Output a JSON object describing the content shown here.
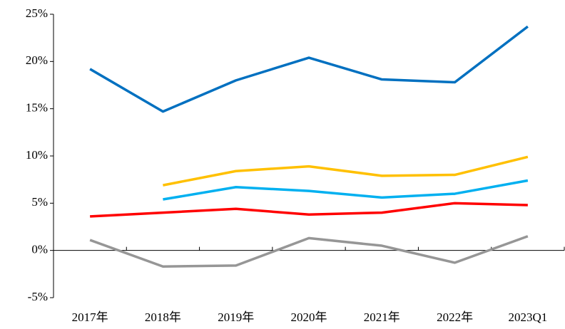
{
  "chart_data": {
    "type": "line",
    "categories": [
      "2017年",
      "2018年",
      "2019年",
      "2020年",
      "2021年",
      "2022年",
      "2023Q1"
    ],
    "series": [
      {
        "color": "#0070c0",
        "values": [
          19.2,
          14.7,
          18.0,
          20.4,
          18.1,
          17.8,
          23.7
        ]
      },
      {
        "color": "#ffc000",
        "values": [
          null,
          6.9,
          8.4,
          8.9,
          7.9,
          8.0,
          9.9
        ]
      },
      {
        "color": "#00b0f0",
        "values": [
          null,
          5.4,
          6.7,
          6.3,
          5.6,
          6.0,
          7.4
        ]
      },
      {
        "color": "#ff0000",
        "values": [
          3.6,
          4.0,
          4.4,
          3.8,
          4.0,
          5.0,
          4.8
        ]
      },
      {
        "color": "#969696",
        "values": [
          1.1,
          -1.7,
          -1.6,
          1.3,
          0.5,
          -1.3,
          1.5
        ]
      }
    ],
    "ylim": [
      -5,
      25
    ],
    "yticks": [
      {
        "value": -5,
        "label": "-5%"
      },
      {
        "value": 0,
        "label": "0%"
      },
      {
        "value": 5,
        "label": "5%"
      },
      {
        "value": 10,
        "label": "10%"
      },
      {
        "value": 15,
        "label": "15%"
      },
      {
        "value": 20,
        "label": "20%"
      },
      {
        "value": 25,
        "label": "25%"
      }
    ],
    "grid": false
  }
}
